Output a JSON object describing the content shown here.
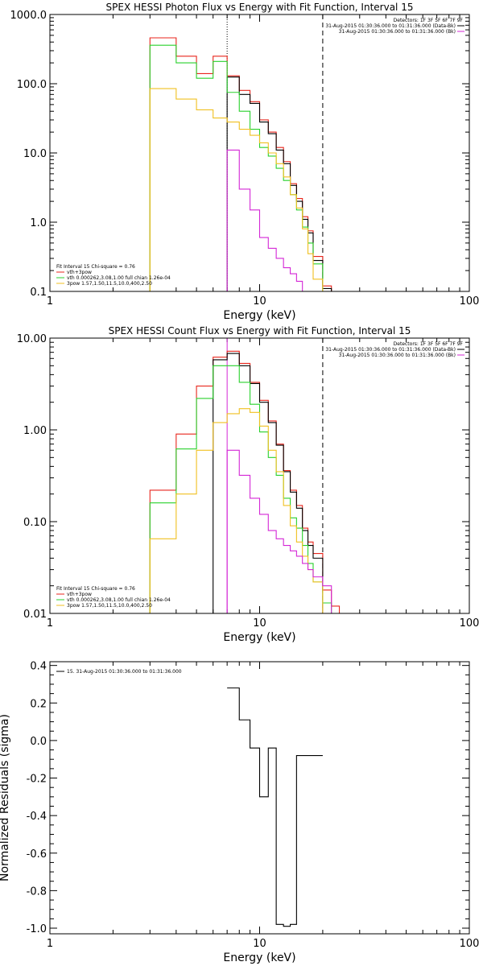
{
  "chart_data": [
    {
      "type": "line",
      "title": "SPEX HESSI Photon Flux vs Energy with Fit Function, Interval 15",
      "xlabel": "Energy (keV)",
      "ylabel": "",
      "xscale": "log",
      "yscale": "log",
      "xlim": [
        1,
        100
      ],
      "ylim": [
        0.1,
        1000
      ],
      "xticks": [
        1,
        10,
        100
      ],
      "xticklabels": [
        "1",
        "10",
        "100"
      ],
      "yticks": [
        0.1,
        1,
        10,
        100,
        1000
      ],
      "yticklabels": [
        "0.1",
        "1.0",
        "10.0",
        "100.0",
        "1000.0"
      ],
      "vlines": [
        {
          "x": 7.0,
          "style": "dotted",
          "color": "#000000"
        },
        {
          "x": 20.0,
          "style": "dashed",
          "color": "#000000"
        }
      ],
      "bin_edges": [
        3,
        4,
        5,
        6,
        7,
        8,
        9,
        10,
        11,
        12,
        13,
        14,
        15,
        16,
        17,
        18,
        20,
        22,
        24
      ],
      "series": [
        {
          "name": "vth+3pow",
          "color": "#e8261d",
          "values": [
            460,
            250,
            140,
            250,
            130,
            80,
            55,
            30,
            20,
            12,
            7.5,
            3.6,
            2.2,
            1.2,
            0.75,
            0.32,
            0.12,
            0.09
          ]
        },
        {
          "name": "",
          "color": "#000000",
          "values": [
            null,
            null,
            null,
            null,
            125,
            70,
            52,
            28,
            19,
            11,
            7,
            3.4,
            2.0,
            1.1,
            0.7,
            0.28,
            0.11,
            null
          ]
        },
        {
          "name": "vth 0.000262,3.08,1.00 full chian 1.26e-04",
          "color": "#29d12c",
          "values": [
            360,
            200,
            120,
            210,
            75,
            40,
            22,
            12,
            9,
            6,
            4,
            2.5,
            1.5,
            0.85,
            0.5,
            0.25,
            0.1,
            0.08
          ]
        },
        {
          "name": "3pow 1.57,1.50,11.5,10.0,400,2.50",
          "color": "#f0c020",
          "values": [
            85,
            60,
            42,
            32,
            28,
            22,
            18,
            14,
            10,
            7,
            4.5,
            2.5,
            1.6,
            0.8,
            0.35,
            0.15,
            0.06,
            null
          ]
        },
        {
          "name": "",
          "color": "#d427d6",
          "values": [
            null,
            null,
            null,
            null,
            11,
            3,
            1.5,
            0.6,
            0.42,
            0.3,
            0.22,
            0.18,
            0.14,
            0.1,
            0.07,
            null,
            null,
            null
          ]
        }
      ],
      "legend": {
        "placement": "bottom-left",
        "header": "Fit Interval 15   Chi-square = 0.76",
        "entries": [
          {
            "label": "vth+3pow",
            "color": "#e8261d"
          },
          {
            "label": "vth 0.000262,3.08,1.00 full chian 1.26e-04",
            "color": "#29d12c"
          },
          {
            "label": "3pow 1.57,1.50,11.5,10.0,400,2.50",
            "color": "#f0c020"
          }
        ]
      },
      "info": {
        "placement": "top-right",
        "header": "Detectors: 1F 3F 5F 6F 7F 9F",
        "lines": [
          {
            "text": "31-Aug-2015 01:30:36.000 to 01:31:36.000 (Data-Bk)",
            "color": "#000000"
          },
          {
            "text": "31-Aug-2015 01:30:36.000 to 01:31:36.000 (Bk)",
            "color": "#d427d6"
          }
        ]
      }
    },
    {
      "type": "line",
      "title": "SPEX HESSI Count Flux vs Energy with Fit Function, Interval 15",
      "xlabel": "Energy (keV)",
      "ylabel": "",
      "xscale": "log",
      "yscale": "log",
      "xlim": [
        1,
        100
      ],
      "ylim": [
        0.01,
        10
      ],
      "xticks": [
        1,
        10,
        100
      ],
      "xticklabels": [
        "1",
        "10",
        "100"
      ],
      "yticks": [
        0.01,
        0.1,
        1,
        10
      ],
      "yticklabels": [
        "0.01",
        "0.10",
        "1.00",
        "10.00"
      ],
      "vlines": [
        {
          "x": 7.0,
          "style": "solid",
          "color": "#d427d6"
        },
        {
          "x": 20.0,
          "style": "dashed",
          "color": "#000000"
        }
      ],
      "bin_edges": [
        3,
        4,
        5,
        6,
        7,
        8,
        9,
        10,
        11,
        12,
        13,
        14,
        15,
        16,
        17,
        18,
        20,
        22,
        24
      ],
      "series": [
        {
          "name": "vth+3pow",
          "color": "#e8261d",
          "values": [
            0.22,
            0.9,
            3.0,
            6.2,
            7.2,
            5.3,
            3.3,
            2.1,
            1.25,
            0.7,
            0.36,
            0.22,
            0.15,
            0.085,
            0.06,
            0.045,
            0.018,
            0.012
          ]
        },
        {
          "name": "",
          "color": "#000000",
          "values": [
            null,
            null,
            null,
            5.8,
            6.8,
            5.0,
            3.2,
            2.0,
            1.2,
            0.68,
            0.35,
            0.21,
            0.14,
            0.08,
            0.055,
            0.04,
            null,
            null
          ]
        },
        {
          "name": "vth 0.000262,3.08,1.00 full chian 1.26e-04",
          "color": "#29d12c",
          "values": [
            0.16,
            0.62,
            2.2,
            5.0,
            5.0,
            3.3,
            1.9,
            0.95,
            0.5,
            0.32,
            0.18,
            0.11,
            0.085,
            0.055,
            0.035,
            0.022,
            0.013,
            0.009
          ]
        },
        {
          "name": "3pow 1.57,1.50,11.5,10.0,400,2.50",
          "color": "#f0c020",
          "values": [
            0.065,
            0.2,
            0.6,
            1.2,
            1.5,
            1.7,
            1.55,
            1.1,
            0.6,
            0.35,
            0.15,
            0.09,
            0.06,
            0.042,
            0.03,
            0.022,
            0.01,
            null
          ]
        },
        {
          "name": "",
          "color": "#d427d6",
          "values": [
            null,
            null,
            null,
            null,
            0.6,
            0.32,
            0.18,
            0.12,
            0.08,
            0.065,
            0.055,
            0.048,
            0.042,
            0.035,
            0.03,
            0.025,
            0.02,
            null
          ]
        }
      ],
      "legend": {
        "placement": "bottom-left",
        "header": "Fit Interval 15   Chi-square = 0.76",
        "entries": [
          {
            "label": "vth+3pow",
            "color": "#e8261d"
          },
          {
            "label": "vth 0.000262,3.08,1.00 full chian 1.26e-04",
            "color": "#29d12c"
          },
          {
            "label": "3pow 1.57,1.50,11.5,10.0,400,2.50",
            "color": "#f0c020"
          }
        ]
      },
      "info": {
        "placement": "top-right",
        "header": "Detectors: 1F 3F 5F 6F 7F 9F",
        "lines": [
          {
            "text": "31-Aug-2015 01:30:36.000 to 01:31:36.000 (Data-Bk)",
            "color": "#000000"
          },
          {
            "text": "31-Aug-2015 01:30:36.000 to 01:31:36.000 (Bk)",
            "color": "#d427d6"
          }
        ]
      }
    },
    {
      "type": "line",
      "title": "",
      "xlabel": "Energy (keV)",
      "ylabel": "Normalized Residuals (sigma)",
      "xscale": "log",
      "yscale": "linear",
      "xlim": [
        1,
        100
      ],
      "ylim": [
        -1.03,
        0.42
      ],
      "xticks": [
        1,
        10,
        100
      ],
      "xticklabels": [
        "1",
        "10",
        "100"
      ],
      "yticks": [
        0.4,
        0.2,
        0.0,
        -0.2,
        -0.4,
        -0.6,
        -0.8,
        -1.0
      ],
      "yticklabels": [
        "0.4",
        "0.2",
        "0.0",
        "-0.2",
        "-0.4",
        "-0.6",
        "-0.8",
        "-1.0"
      ],
      "bin_edges": [
        7,
        8,
        9,
        10,
        11,
        12,
        13,
        14,
        15,
        16,
        17,
        18,
        20
      ],
      "series": [
        {
          "name": "15. 31-Aug-2015 01:30:36.000 to 01:31:36.000",
          "color": "#000000",
          "values": [
            0.28,
            0.11,
            -0.04,
            -0.3,
            -0.04,
            -0.98,
            -0.99,
            -0.98,
            -0.08,
            -0.08,
            -0.08,
            -0.08
          ]
        }
      ],
      "legend": {
        "placement": "top-left",
        "entries": [
          {
            "label": "15. 31-Aug-2015 01:30:36.000 to 01:31:36.000",
            "color": "#000000"
          }
        ]
      }
    }
  ]
}
